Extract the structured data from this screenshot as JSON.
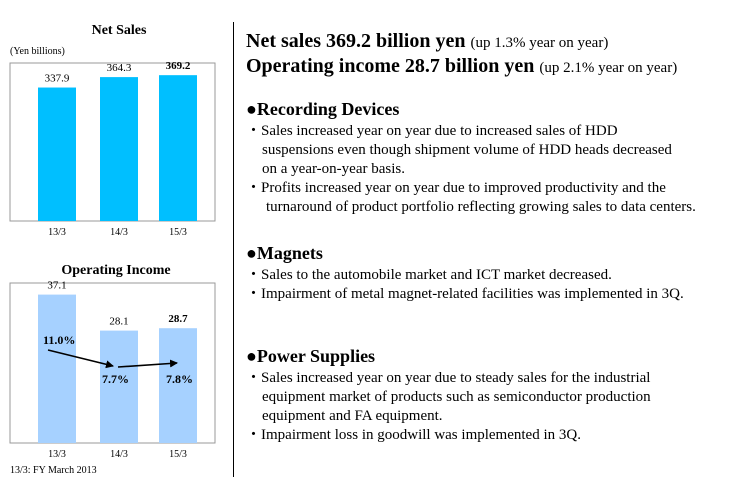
{
  "charts": [
    {
      "type": "bar",
      "title": "Net Sales",
      "unit": "(Yen billions)",
      "categories": [
        "13/3",
        "14/3",
        "15/3"
      ],
      "values": [
        337.9,
        364.3,
        369.2
      ],
      "value_labels": [
        "337.9",
        "364.3",
        "369.2"
      ],
      "ylim": [
        0,
        400
      ],
      "bar_color": "#00bfff"
    },
    {
      "type": "bar",
      "title": "Operating Income",
      "categories": [
        "13/3",
        "14/3",
        "15/3"
      ],
      "values": [
        37.1,
        28.1,
        28.7
      ],
      "value_labels": [
        "37.1",
        "28.1",
        "28.7"
      ],
      "margins": [
        "11.0%",
        "7.7%",
        "7.8%"
      ],
      "ylim": [
        0,
        40
      ],
      "bar_color": "#a6d1ff"
    }
  ],
  "footnote": "13/3: FY March 2013",
  "headline": {
    "line1": "Net sales 369.2 billion yen",
    "line1_sub": "(up 1.3% year on year)",
    "line2": "Operating income 28.7 billion yen",
    "line2_sub": "(up 2.1% year on year)"
  },
  "sections": {
    "recording": {
      "title": "●Recording Devices",
      "bullet1": [
        "・Sales increased year on year due to increased sales of HDD",
        "suspensions even though shipment volume of HDD heads decreased",
        "on a year-on-year basis."
      ],
      "bullet2": [
        "・Profits increased year on year due to improved productivity and the",
        "turnaround of product portfolio reflecting growing sales to data centers."
      ]
    },
    "magnets": {
      "title": "●Magnets",
      "bullet1": "・Sales to the automobile market and ICT market decreased.",
      "bullet2": "・Impairment of metal magnet-related facilities was implemented in 3Q."
    },
    "power": {
      "title": "●Power Supplies",
      "bullet1": [
        "・Sales increased year on year due to steady sales for the industrial",
        "equipment market of products such as semiconductor production",
        "equipment and FA equipment."
      ],
      "bullet2": "・Impairment loss in goodwill was implemented in 3Q."
    }
  }
}
